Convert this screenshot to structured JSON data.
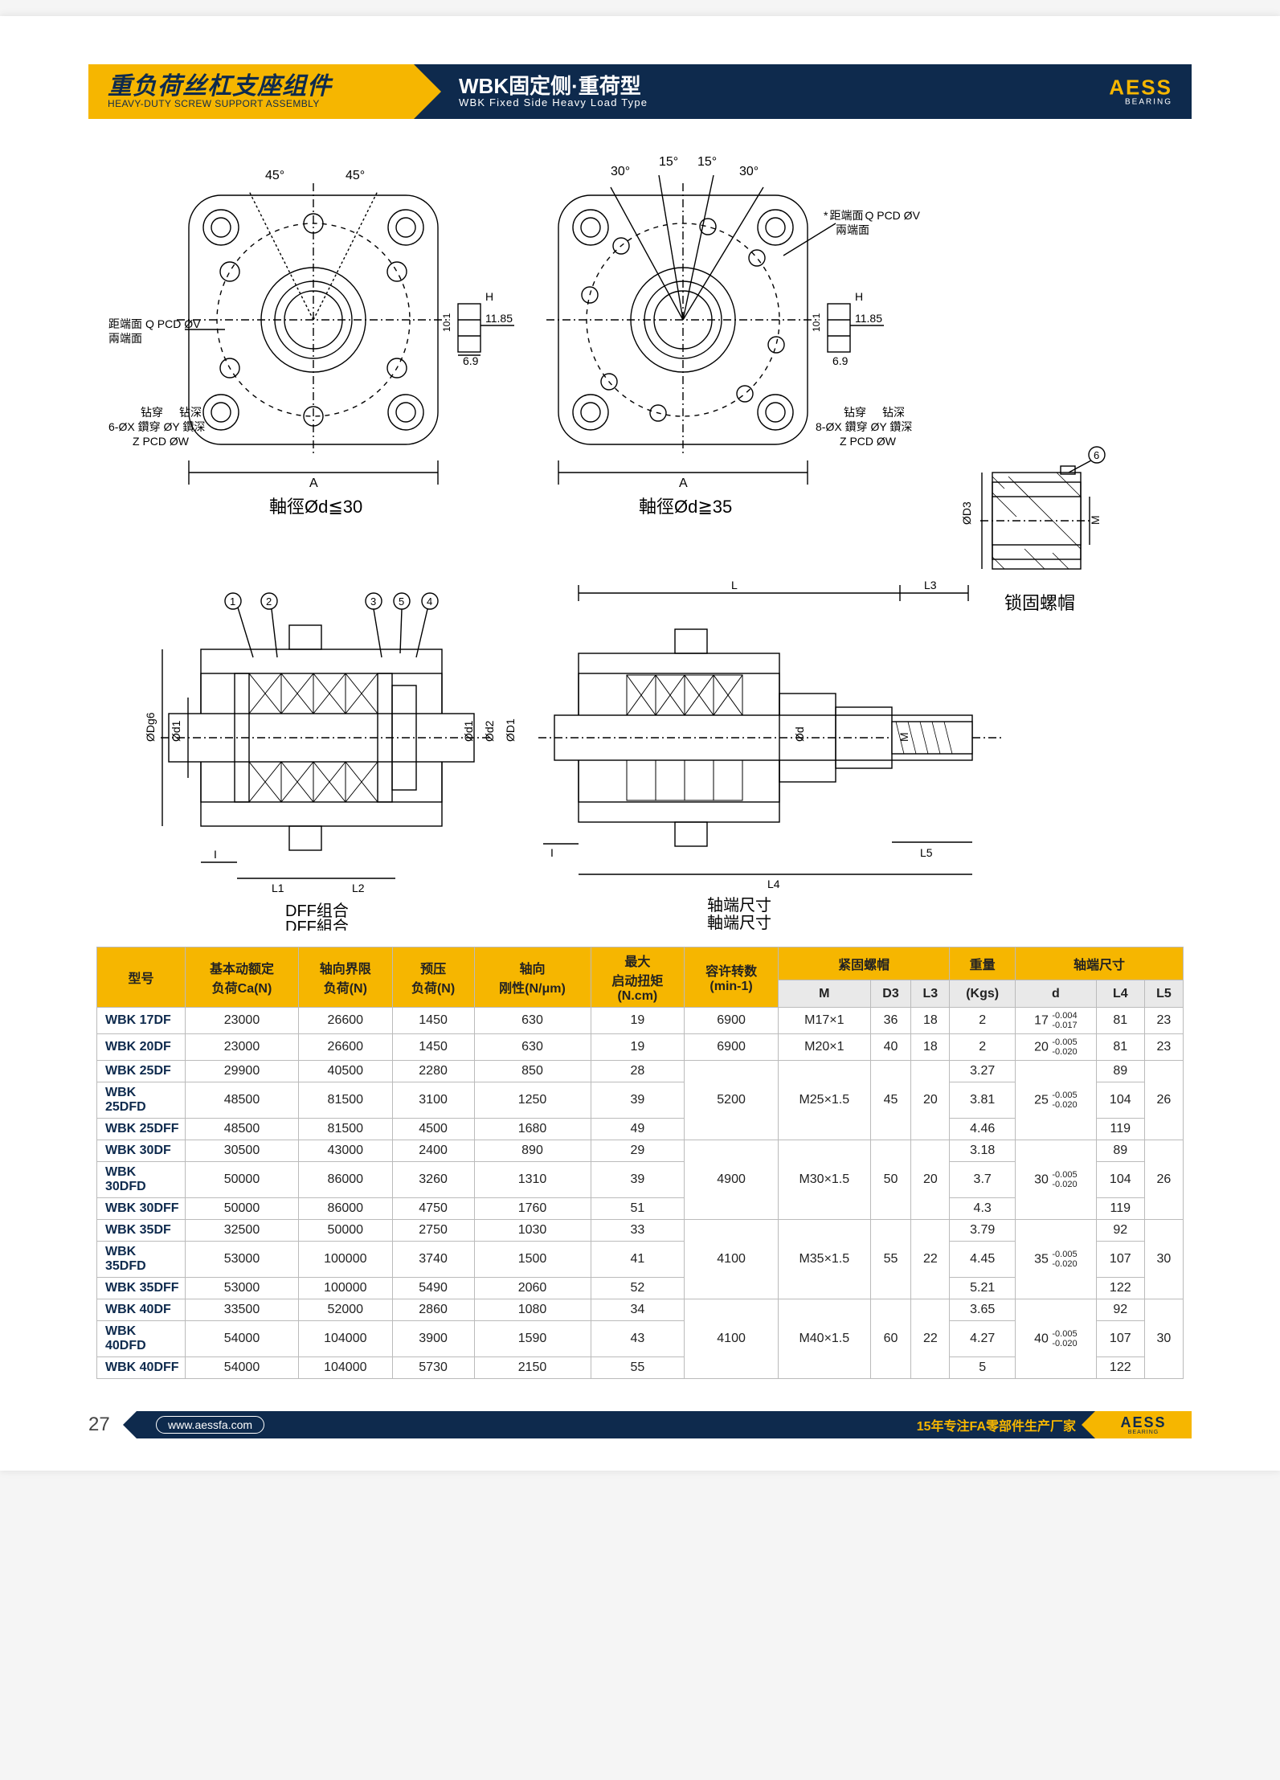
{
  "header": {
    "left_cn": "重负荷丝杠支座组件",
    "left_en": "HEAVY-DUTY SCREW SUPPORT ASSEMBLY",
    "mid_cn": "WBK固定侧·重荷型",
    "mid_en": "WBK Fixed Side Heavy Load Type",
    "brand": "AESS",
    "brand_sub": "BEARING"
  },
  "diagram": {
    "angles_small": [
      "45°",
      "45°"
    ],
    "angles_large": [
      "30°",
      "15°",
      "15°",
      "30°"
    ],
    "note_pcd_right": "距端面 Q PCD ØV\n兩端面",
    "note_pcd_left": "距端面 Q PCD ØV\n兩端面",
    "note_holes_6": "钻穿    钻深\n6-ØX 鑽穿 ØY 鑽深\nZ PCD ØW",
    "note_holes_8": "钻穿    钻深\n8-ØX 鑽穿 ØY 鑽深\nZ PCD ØW",
    "dim_H": "H",
    "dim_1185": "11.85",
    "dim_101": "10.1",
    "dim_69": "6.9",
    "dim_A": "A",
    "caption_left": "軸徑Ød≦30",
    "caption_right": "軸徑Ød≧35",
    "locknut_label": "锁固螺帽",
    "locknut_dims": {
      "D3": "ØD3",
      "M": "M"
    },
    "callouts": [
      "1",
      "2",
      "3",
      "4",
      "5",
      "6"
    ],
    "section_left": {
      "label_top": "DFF组合",
      "label_bot": "DFF組合",
      "dims": [
        "ØDg6",
        "Ød1",
        "I",
        "L1",
        "L2",
        "Ød1",
        "Ød2",
        "ØD1"
      ]
    },
    "section_right": {
      "label_top": "轴端尺寸",
      "label_bot": "軸端尺寸",
      "dims": [
        "L",
        "L3",
        "Ød",
        "M",
        "I",
        "L5",
        "L4"
      ]
    }
  },
  "table": {
    "headers_row1": {
      "model": "型号",
      "ca": "基本动额定\n负荷Ca(N)",
      "axial_limit": "轴向界限\n负荷(N)",
      "preload": "预压\n负荷(N)",
      "stiffness": "轴向\n刚性(N/μm)",
      "start_torque": "最大\n启动扭矩\n(N.cm)",
      "allow_rpm": "容许转数\n(min-1)",
      "locknut": "紧固螺帽",
      "weight": "重量",
      "shaft_end": "轴端尺寸"
    },
    "headers_row2": {
      "M": "M",
      "D3": "D3",
      "L3": "L3",
      "kgs": "(Kgs)",
      "d": "d",
      "L4": "L4",
      "L5": "L5"
    },
    "groups": [
      {
        "rows": [
          {
            "model": "WBK 17DF",
            "ca": "23000",
            "axial": "26600",
            "preload": "1450",
            "stiff": "630",
            "torque": "19",
            "rpm": "6900",
            "M": "M17×1",
            "D3": "36",
            "L3": "18",
            "kgs": "2",
            "d": "17",
            "dtol": "-0.004 / -0.017",
            "L4": "81",
            "L5": "23"
          }
        ]
      },
      {
        "rows": [
          {
            "model": "WBK 20DF",
            "ca": "23000",
            "axial": "26600",
            "preload": "1450",
            "stiff": "630",
            "torque": "19",
            "rpm": "6900",
            "M": "M20×1",
            "D3": "40",
            "L3": "18",
            "kgs": "2",
            "d": "20",
            "dtol": "-0.005 / -0.020",
            "L4": "81",
            "L5": "23"
          }
        ]
      },
      {
        "rpm": "5200",
        "M": "M25×1.5",
        "D3": "45",
        "L3": "20",
        "d": "25",
        "dtol": "-0.005 / -0.020",
        "L5": "26",
        "rows": [
          {
            "model": "WBK 25DF",
            "ca": "29900",
            "axial": "40500",
            "preload": "2280",
            "stiff": "850",
            "torque": "28",
            "kgs": "3.27",
            "L4": "89"
          },
          {
            "model": "WBK 25DFD",
            "ca": "48500",
            "axial": "81500",
            "preload": "3100",
            "stiff": "1250",
            "torque": "39",
            "kgs": "3.81",
            "L4": "104"
          },
          {
            "model": "WBK 25DFF",
            "ca": "48500",
            "axial": "81500",
            "preload": "4500",
            "stiff": "1680",
            "torque": "49",
            "kgs": "4.46",
            "L4": "119"
          }
        ]
      },
      {
        "rpm": "4900",
        "M": "M30×1.5",
        "D3": "50",
        "L3": "20",
        "d": "30",
        "dtol": "-0.005 / -0.020",
        "L5": "26",
        "rows": [
          {
            "model": "WBK 30DF",
            "ca": "30500",
            "axial": "43000",
            "preload": "2400",
            "stiff": "890",
            "torque": "29",
            "kgs": "3.18",
            "L4": "89"
          },
          {
            "model": "WBK 30DFD",
            "ca": "50000",
            "axial": "86000",
            "preload": "3260",
            "stiff": "1310",
            "torque": "39",
            "kgs": "3.7",
            "L4": "104"
          },
          {
            "model": "WBK 30DFF",
            "ca": "50000",
            "axial": "86000",
            "preload": "4750",
            "stiff": "1760",
            "torque": "51",
            "kgs": "4.3",
            "L4": "119"
          }
        ]
      },
      {
        "rpm": "4100",
        "M": "M35×1.5",
        "D3": "55",
        "L3": "22",
        "d": "35",
        "dtol": "-0.005 / -0.020",
        "L5": "30",
        "rows": [
          {
            "model": "WBK 35DF",
            "ca": "32500",
            "axial": "50000",
            "preload": "2750",
            "stiff": "1030",
            "torque": "33",
            "kgs": "3.79",
            "L4": "92"
          },
          {
            "model": "WBK 35DFD",
            "ca": "53000",
            "axial": "100000",
            "preload": "3740",
            "stiff": "1500",
            "torque": "41",
            "kgs": "4.45",
            "L4": "107"
          },
          {
            "model": "WBK 35DFF",
            "ca": "53000",
            "axial": "100000",
            "preload": "5490",
            "stiff": "2060",
            "torque": "52",
            "kgs": "5.21",
            "L4": "122"
          }
        ]
      },
      {
        "rpm": "4100",
        "M": "M40×1.5",
        "D3": "60",
        "L3": "22",
        "d": "40",
        "dtol": "-0.005 / -0.020",
        "L5": "30",
        "rows": [
          {
            "model": "WBK 40DF",
            "ca": "33500",
            "axial": "52000",
            "preload": "2860",
            "stiff": "1080",
            "torque": "34",
            "kgs": "3.65",
            "L4": "92"
          },
          {
            "model": "WBK 40DFD",
            "ca": "54000",
            "axial": "104000",
            "preload": "3900",
            "stiff": "1590",
            "torque": "43",
            "kgs": "4.27",
            "L4": "107"
          },
          {
            "model": "WBK 40DFF",
            "ca": "54000",
            "axial": "104000",
            "preload": "5730",
            "stiff": "2150",
            "torque": "55",
            "kgs": "5",
            "L4": "122"
          }
        ]
      }
    ]
  },
  "footer": {
    "page": "27",
    "url": "www.aessfa.com",
    "slogan": "15年专注FA零部件生产厂家",
    "brand": "AESS",
    "brand_sub": "BEARING"
  },
  "style": {
    "accent": "#f6b600",
    "navy": "#0e2a4d",
    "grey": "#e9e9e9",
    "border": "#bbbbbb",
    "stroke": "#000000",
    "font_cn_size": 30,
    "font_en_size": 12,
    "diagram_stroke_w": 1.5
  }
}
